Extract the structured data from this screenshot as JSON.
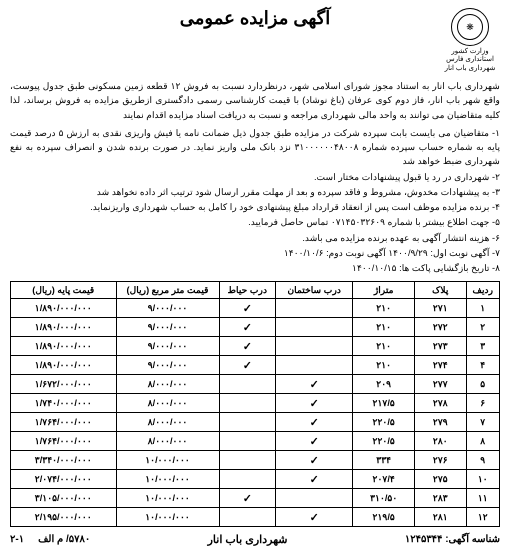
{
  "title": "آگهی مزایده عمومی",
  "logo": {
    "line1": "وزارت کشور",
    "line2": "استانداری فارس",
    "line3": "شهرداری باب انار"
  },
  "intro": "شهرداری باب انار به استناد مجوز شورای اسلامی شهر، درنظردارد نسبت به فروش ۱۲ قطعه زمین مسکونی طبق جدول پیوست، واقع شهر باب انار، فاز دوم کوی عرفان (باغ نوشاد) با قیمت کارشناسی رسمی دادگستری ازطریق مزایده به فروش برساند، لذا کلیه متقاضیان می توانند به واحد مالی شهرداری مراجعه و نسبت به دریافت اسناد مزایده اقدام نمایند",
  "terms": [
    "۱- متقاضیان می بایست بابت سپرده شرکت در مزایده طبق جدول ذیل ضمانت نامه یا فیش واریزی نقدی به ارزش ۵ درصد قیمت پایه به شماره حساب سپرده شماره ۳۱۰۰۰۰۰۰۴۸۰۰۸ نزد بانک ملی واریز نماید. در صورت برنده شدن و انصراف سپرده به نفع شهرداری ضبط خواهد شد",
    "۲- شهرداری در رد یا قبول پیشنهادات مختار است.",
    "۳- به پیشنهادات مخدوش، مشروط و فاقد سپرده و بعد از مهلت مقرر ارسال شود ترتیب اثر داده نخواهد شد",
    "۴- برنده مزایده موظف است پس از انعقاد قرارداد مبلغ پیشنهادی خود را کامل به حساب شهرداری واریزنماید.",
    "۵- جهت اطلاع بیشتر با شماره ۰۷۱۴۵۰۳۲۶۰۹ تماس حاصل فرمایید.",
    "۶- هزینه انتشار آگهی به عهده برنده مزایده می باشد.",
    "۷- آگهی نوبت اول: ۱۴۰۰/۹/۲۹ آگهی نوبت دوم: ۱۴۰۰/۱۰/۶",
    "۸- تاریخ بازگشایی پاکت ها: ۱۴۰۰/۱۰/۱۵"
  ],
  "columns": [
    "ردیف",
    "پلاک",
    "متراژ",
    "درب ساختمان",
    "درب حیاط",
    "قیمت متر مربع (ریال)",
    "قیمت پایه (ریال)"
  ],
  "rows": [
    {
      "r": "۱",
      "plak": "۲۷۱",
      "m": "۲۱۰",
      "db": "",
      "dy": "✓",
      "pm": "۹/۰۰۰/۰۰۰",
      "pt": "۱/۸۹۰/۰۰۰/۰۰۰"
    },
    {
      "r": "۲",
      "plak": "۲۷۲",
      "m": "۲۱۰",
      "db": "",
      "dy": "✓",
      "pm": "۹/۰۰۰/۰۰۰",
      "pt": "۱/۸۹۰/۰۰۰/۰۰۰"
    },
    {
      "r": "۳",
      "plak": "۲۷۳",
      "m": "۲۱۰",
      "db": "",
      "dy": "✓",
      "pm": "۹/۰۰۰/۰۰۰",
      "pt": "۱/۸۹۰/۰۰۰/۰۰۰"
    },
    {
      "r": "۴",
      "plak": "۲۷۴",
      "m": "۲۱۰",
      "db": "",
      "dy": "✓",
      "pm": "۹/۰۰۰/۰۰۰",
      "pt": "۱/۸۹۰/۰۰۰/۰۰۰"
    },
    {
      "r": "۵",
      "plak": "۲۷۷",
      "m": "۲۰۹",
      "db": "✓",
      "dy": "",
      "pm": "۸/۰۰۰/۰۰۰",
      "pt": "۱/۶۷۲/۰۰۰/۰۰۰"
    },
    {
      "r": "۶",
      "plak": "۲۷۸",
      "m": "۲۱۷/۵",
      "db": "✓",
      "dy": "",
      "pm": "۸/۰۰۰/۰۰۰",
      "pt": "۱/۷۴۰/۰۰۰/۰۰۰"
    },
    {
      "r": "۷",
      "plak": "۲۷۹",
      "m": "۲۲۰/۵",
      "db": "✓",
      "dy": "",
      "pm": "۸/۰۰۰/۰۰۰",
      "pt": "۱/۷۶۴/۰۰۰/۰۰۰"
    },
    {
      "r": "۸",
      "plak": "۲۸۰",
      "m": "۲۲۰/۵",
      "db": "✓",
      "dy": "",
      "pm": "۸/۰۰۰/۰۰۰",
      "pt": "۱/۷۶۴/۰۰۰/۰۰۰"
    },
    {
      "r": "۹",
      "plak": "۲۷۶",
      "m": "۳۳۴",
      "db": "✓",
      "dy": "",
      "pm": "۱۰/۰۰۰/۰۰۰",
      "pt": "۳/۳۴۰/۰۰۰/۰۰۰"
    },
    {
      "r": "۱۰",
      "plak": "۲۷۵",
      "m": "۲۰۷/۴",
      "db": "✓",
      "dy": "",
      "pm": "۱۰/۰۰۰/۰۰۰",
      "pt": "۲/۰۷۴/۰۰۰/۰۰۰"
    },
    {
      "r": "۱۱",
      "plak": "۲۸۳",
      "m": "۳۱۰/۵۰",
      "db": "",
      "dy": "✓",
      "pm": "۱۰/۰۰۰/۰۰۰",
      "pt": "۳/۱۰۵/۰۰۰/۰۰۰"
    },
    {
      "r": "۱۲",
      "plak": "۲۸۱",
      "m": "۲۱۹/۵",
      "db": "✓",
      "dy": "",
      "pm": "۱۰/۰۰۰/۰۰۰",
      "pt": "۲/۱۹۵/۰۰۰/۰۰۰"
    }
  ],
  "footer": {
    "right": "شناسه آگهی: ۱۲۴۵۳۴۴",
    "center": "شهرداری باب انار",
    "left_a": "۵۷۸۰/ م الف",
    "left_b": "۲-۱"
  }
}
